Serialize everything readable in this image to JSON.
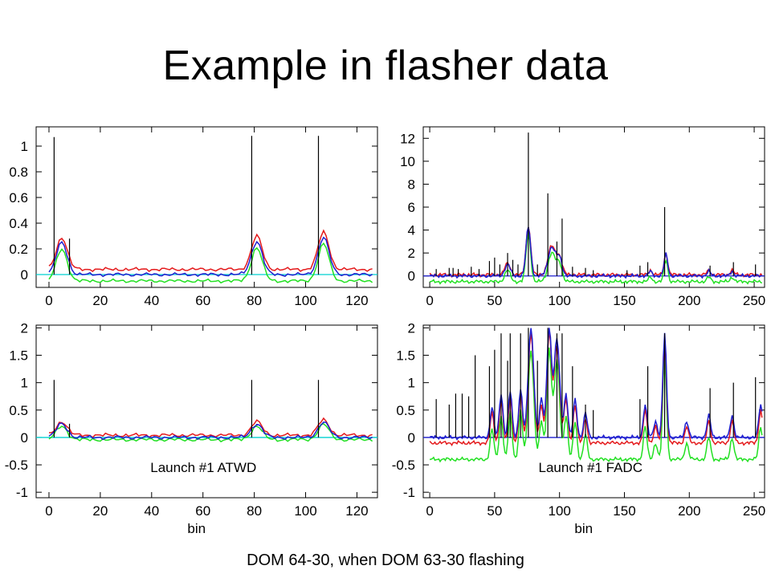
{
  "title": "Example in flasher data",
  "caption": "DOM 64-30, when DOM 63-30 flashing",
  "colors": {
    "black": "#000000",
    "red": "#e41a1c",
    "blue": "#1f1fd0",
    "green": "#22e022",
    "cyan": "#00d0d0"
  },
  "chart_data": [
    {
      "id": "top-left",
      "type": "line",
      "title": "",
      "xlabel": "",
      "ylabel": "",
      "xlim": [
        -5,
        128
      ],
      "ylim": [
        -0.1,
        1.15
      ],
      "xticks": [
        0,
        20,
        40,
        60,
        80,
        100,
        120
      ],
      "yticks": [
        0,
        0.2,
        0.4,
        0.6,
        0.8,
        1
      ],
      "baseline": 0,
      "spikes": [
        [
          2,
          1.07
        ],
        [
          8,
          0.28
        ],
        [
          79,
          1.08
        ],
        [
          105,
          1.08
        ]
      ],
      "peaks": [
        [
          5,
          0.25,
          3
        ],
        [
          81,
          0.26,
          3
        ],
        [
          107,
          0.29,
          3
        ]
      ],
      "series_offsets": {
        "red": 0.04,
        "blue": 0.0,
        "green": -0.05
      }
    },
    {
      "id": "top-right",
      "type": "line",
      "title": "",
      "xlabel": "",
      "ylabel": "",
      "xlim": [
        -5,
        258
      ],
      "ylim": [
        -1,
        13
      ],
      "xticks": [
        0,
        50,
        100,
        150,
        200,
        250
      ],
      "yticks": [
        0,
        2,
        4,
        6,
        8,
        10,
        12
      ],
      "baseline": 0,
      "spikes": [
        [
          5,
          0.6
        ],
        [
          15,
          0.7
        ],
        [
          18,
          0.7
        ],
        [
          22,
          0.6
        ],
        [
          32,
          0.8
        ],
        [
          38,
          0.6
        ],
        [
          46,
          1.3
        ],
        [
          50,
          1.6
        ],
        [
          54,
          1.0
        ],
        [
          60,
          2.0
        ],
        [
          64,
          1.4
        ],
        [
          68,
          1.0
        ],
        [
          76,
          12.5
        ],
        [
          83,
          1.0
        ],
        [
          91,
          7.2
        ],
        [
          98,
          3.0
        ],
        [
          102,
          5.0
        ],
        [
          110,
          0.8
        ],
        [
          120,
          0.7
        ],
        [
          126,
          0.5
        ],
        [
          152,
          0.5
        ],
        [
          162,
          0.9
        ],
        [
          168,
          1.2
        ],
        [
          181,
          6.0
        ],
        [
          216,
          0.9
        ],
        [
          234,
          1.2
        ],
        [
          251,
          1.0
        ]
      ],
      "peaks": [
        [
          76,
          4.3,
          2.5
        ],
        [
          94,
          2.5,
          4
        ],
        [
          100,
          1.5,
          3
        ],
        [
          60,
          1.0,
          3
        ],
        [
          182,
          1.9,
          2
        ],
        [
          170,
          0.4,
          2
        ],
        [
          215,
          0.4,
          2
        ],
        [
          233,
          0.4,
          2
        ]
      ],
      "series_offsets": {
        "red": 0.1,
        "blue": 0.0,
        "green": -0.5
      }
    },
    {
      "id": "bottom-left",
      "type": "line",
      "title": "",
      "xlabel": "bin",
      "ylabel": "",
      "xlim": [
        -5,
        128
      ],
      "ylim": [
        -1.1,
        2.05
      ],
      "xticks": [
        0,
        20,
        40,
        60,
        80,
        100,
        120
      ],
      "yticks": [
        -1,
        -0.5,
        0,
        0.5,
        1,
        1.5,
        2
      ],
      "baseline": 0,
      "spikes": [
        [
          2,
          1.05
        ],
        [
          8,
          0.25
        ],
        [
          79,
          1.05
        ],
        [
          105,
          1.05
        ]
      ],
      "peaks": [
        [
          5,
          0.25,
          3
        ],
        [
          81,
          0.25,
          3
        ],
        [
          107,
          0.28,
          3
        ]
      ],
      "series_offsets": {
        "red": 0.04,
        "blue": 0.0,
        "green": -0.04
      },
      "annotation": "Launch #1 ATWD"
    },
    {
      "id": "bottom-right",
      "type": "line",
      "title": "",
      "xlabel": "bin",
      "ylabel": "",
      "xlim": [
        -5,
        258
      ],
      "ylim": [
        -1.1,
        2.05
      ],
      "xticks": [
        0,
        50,
        100,
        150,
        200,
        250
      ],
      "yticks": [
        -1,
        -0.5,
        0,
        0.5,
        1,
        1.5,
        2
      ],
      "baseline": 0,
      "spikes": [
        [
          5,
          0.7
        ],
        [
          15,
          0.6
        ],
        [
          20,
          0.8
        ],
        [
          25,
          0.8
        ],
        [
          30,
          0.75
        ],
        [
          35,
          1.5
        ],
        [
          46,
          1.3
        ],
        [
          50,
          1.6
        ],
        [
          55,
          1.9
        ],
        [
          60,
          1.4
        ],
        [
          62,
          1.9
        ],
        [
          70,
          1.9
        ],
        [
          76,
          2.0
        ],
        [
          83,
          1.4
        ],
        [
          91,
          2.0
        ],
        [
          98,
          1.9
        ],
        [
          102,
          1.9
        ],
        [
          110,
          1.3
        ],
        [
          120,
          0.6
        ],
        [
          126,
          0.5
        ],
        [
          162,
          0.7
        ],
        [
          168,
          1.3
        ],
        [
          181,
          1.9
        ],
        [
          216,
          0.9
        ],
        [
          234,
          1.0
        ],
        [
          251,
          1.1
        ]
      ],
      "peaks": [
        [
          48,
          0.55,
          2
        ],
        [
          55,
          0.8,
          2
        ],
        [
          62,
          0.85,
          2
        ],
        [
          70,
          0.9,
          2
        ],
        [
          78,
          2.0,
          3
        ],
        [
          86,
          0.7,
          2
        ],
        [
          92,
          2.0,
          2.5
        ],
        [
          98,
          1.8,
          3
        ],
        [
          105,
          0.8,
          2
        ],
        [
          112,
          0.7,
          2
        ],
        [
          120,
          0.45,
          2
        ],
        [
          166,
          0.6,
          2
        ],
        [
          174,
          0.3,
          2
        ],
        [
          181,
          1.9,
          2
        ],
        [
          198,
          0.3,
          2
        ],
        [
          215,
          0.4,
          2
        ],
        [
          233,
          0.4,
          2
        ],
        [
          255,
          0.6,
          2
        ]
      ],
      "series_offsets": {
        "red": -0.1,
        "blue": 0.0,
        "green": -0.4
      },
      "annotation": "Launch #1 FADC"
    }
  ]
}
